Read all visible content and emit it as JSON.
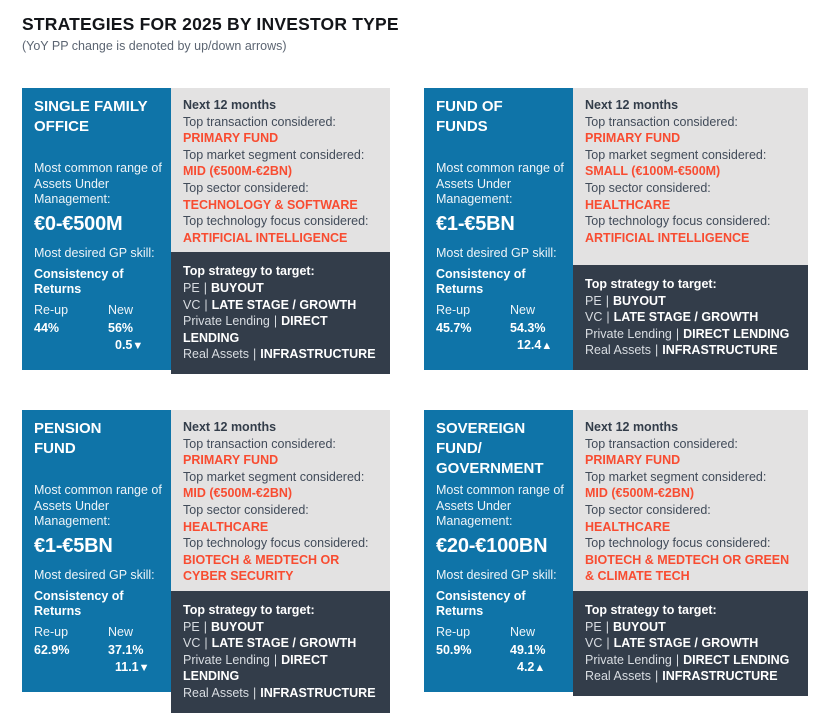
{
  "page": {
    "title": "STRATEGIES FOR 2025 BY INVESTOR TYPE",
    "subtitle": "(YoY PP change is denoted by up/down arrows)"
  },
  "colors": {
    "panel_blue": "#0f74a8",
    "panel_gray": "#e3e2e2",
    "panel_dark": "#333d4a",
    "accent_orange": "#f84c31"
  },
  "labels": {
    "next_12_months": "Next 12 months",
    "top_transaction": "Top transaction considered:",
    "top_market_segment": "Top market segment considered:",
    "top_sector": "Top sector considered:",
    "top_tech_focus": "Top technology focus considered:",
    "aum": "Most common range of Assets Under Management:",
    "gp_skill": "Most desired GP skill:",
    "reup": "Re-up",
    "new": "New",
    "top_strategy": "Top strategy to target:",
    "pipe": "|",
    "strategies": [
      {
        "category": "PE",
        "value": "BUYOUT"
      },
      {
        "category": "VC",
        "value": "LATE STAGE / GROWTH"
      },
      {
        "category": "Private Lending",
        "value": "DIRECT LENDING"
      },
      {
        "category": "Real Assets",
        "value": "INFRASTRUCTURE"
      }
    ]
  },
  "cards": [
    {
      "title": "SINGLE FAMILY\nOFFICE",
      "aum_range": "€0-€500M",
      "gp_skill": "Consistency of\nReturns",
      "reup_pct": "44%",
      "new_pct": "56%",
      "yoy_value": "0.5",
      "yoy_arrow": "▼",
      "yoy_direction": "down",
      "transaction": "PRIMARY FUND",
      "market_segment": "MID (€500M-€2BN)",
      "sector": "TECHNOLOGY & SOFTWARE",
      "tech_focus": "ARTIFICIAL INTELLIGENCE"
    },
    {
      "title": "FUND OF\nFUNDS",
      "aum_range": "€1-€5BN",
      "gp_skill": "Consistency of\nReturns",
      "reup_pct": "45.7%",
      "new_pct": "54.3%",
      "yoy_value": "12.4",
      "yoy_arrow": "▲",
      "yoy_direction": "up",
      "transaction": "PRIMARY FUND",
      "market_segment": "SMALL (€100M-€500M)",
      "sector": "HEALTHCARE",
      "tech_focus": "ARTIFICIAL INTELLIGENCE"
    },
    {
      "title": "PENSION\nFUND",
      "aum_range": "€1-€5BN",
      "gp_skill": "Consistency of\nReturns",
      "reup_pct": "62.9%",
      "new_pct": "37.1%",
      "yoy_value": "11.1",
      "yoy_arrow": "▼",
      "yoy_direction": "down",
      "transaction": "PRIMARY FUND",
      "market_segment": "MID (€500M-€2BN)",
      "sector": "HEALTHCARE",
      "tech_focus": "BIOTECH & MEDTECH OR CYBER SECURITY"
    },
    {
      "title": "SOVEREIGN\nFUND/\nGOVERNMENT",
      "aum_range": "€20-€100BN",
      "gp_skill": "Consistency of\nReturns",
      "reup_pct": "50.9%",
      "new_pct": "49.1%",
      "yoy_value": "4.2",
      "yoy_arrow": "▲",
      "yoy_direction": "up",
      "transaction": "PRIMARY FUND",
      "market_segment": "MID (€500M-€2BN)",
      "sector": "HEALTHCARE",
      "tech_focus": "BIOTECH & MEDTECH OR GREEN & CLIMATE TECH"
    }
  ]
}
